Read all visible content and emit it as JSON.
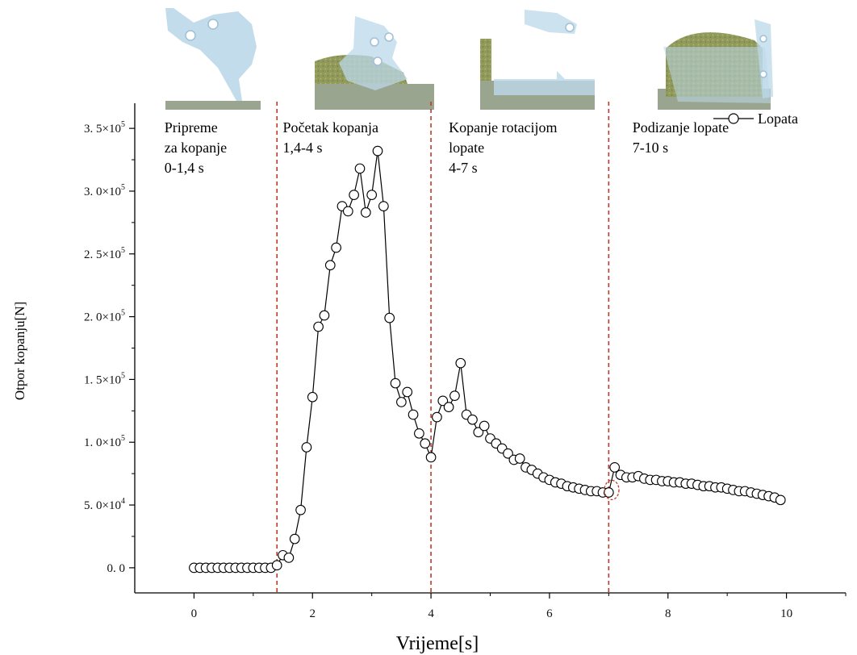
{
  "chart_data": {
    "type": "line",
    "xlabel": "Vrijeme[s]",
    "ylabel": "Otpor kopanju[N]",
    "xlim": [
      -1,
      11
    ],
    "ylim": [
      -20000,
      370000
    ],
    "x_ticks": [
      0,
      2,
      4,
      6,
      8,
      10
    ],
    "x_tick_labels": [
      "0",
      "2",
      "4",
      "6",
      "8",
      "10"
    ],
    "y_ticks": [
      0,
      50000,
      100000,
      150000,
      200000,
      250000,
      300000,
      350000
    ],
    "y_tick_labels": [
      {
        "mantissa": "0. 0",
        "exp": ""
      },
      {
        "mantissa": "5. 0×10",
        "exp": "4"
      },
      {
        "mantissa": "1. 0×10",
        "exp": "5"
      },
      {
        "mantissa": "1. 5×10",
        "exp": "5"
      },
      {
        "mantissa": "2. 0×10",
        "exp": "5"
      },
      {
        "mantissa": "2. 5×10",
        "exp": "5"
      },
      {
        "mantissa": "3. 0×10",
        "exp": "5"
      },
      {
        "mantissa": "3. 5×10",
        "exp": "5"
      }
    ],
    "legend": {
      "label": "Lopata",
      "position": "top-right"
    },
    "phase_boundaries": [
      1.4,
      4.0,
      7.0
    ],
    "phase_labels": [
      {
        "lines": [
          "Pripreme",
          "za kopanje",
          "0-1,4 s"
        ],
        "x": -0.5
      },
      {
        "lines": [
          "Početak kopanja",
          "1,4-4 s"
        ],
        "x": 1.5
      },
      {
        "lines": [
          "Kopanje rotacijom",
          "lopate",
          "4-7 s"
        ],
        "x": 4.3
      },
      {
        "lines": [
          "Podizanje lopate",
          "7-10 s"
        ],
        "x": 7.4
      }
    ],
    "series": [
      {
        "name": "Lopata",
        "color": "#000000",
        "marker": "open-circle",
        "points": [
          [
            0.0,
            0
          ],
          [
            0.1,
            0
          ],
          [
            0.2,
            0
          ],
          [
            0.3,
            0
          ],
          [
            0.4,
            0
          ],
          [
            0.5,
            0
          ],
          [
            0.6,
            0
          ],
          [
            0.7,
            0
          ],
          [
            0.8,
            0
          ],
          [
            0.9,
            0
          ],
          [
            1.0,
            0
          ],
          [
            1.1,
            0
          ],
          [
            1.2,
            0
          ],
          [
            1.3,
            0
          ],
          [
            1.4,
            2000
          ],
          [
            1.5,
            10000
          ],
          [
            1.6,
            8000
          ],
          [
            1.7,
            23000
          ],
          [
            1.8,
            46000
          ],
          [
            1.9,
            96000
          ],
          [
            2.0,
            136000
          ],
          [
            2.1,
            192000
          ],
          [
            2.2,
            201000
          ],
          [
            2.3,
            241000
          ],
          [
            2.4,
            255000
          ],
          [
            2.5,
            288000
          ],
          [
            2.6,
            284000
          ],
          [
            2.7,
            297000
          ],
          [
            2.8,
            318000
          ],
          [
            2.9,
            283000
          ],
          [
            3.0,
            297000
          ],
          [
            3.1,
            332000
          ],
          [
            3.2,
            288000
          ],
          [
            3.3,
            199000
          ],
          [
            3.4,
            147000
          ],
          [
            3.5,
            132000
          ],
          [
            3.6,
            140000
          ],
          [
            3.7,
            122000
          ],
          [
            3.8,
            107000
          ],
          [
            3.9,
            99000
          ],
          [
            4.0,
            88000
          ],
          [
            4.1,
            120000
          ],
          [
            4.2,
            133000
          ],
          [
            4.3,
            128000
          ],
          [
            4.4,
            137000
          ],
          [
            4.5,
            163000
          ],
          [
            4.6,
            122000
          ],
          [
            4.7,
            118000
          ],
          [
            4.8,
            108000
          ],
          [
            4.9,
            113000
          ],
          [
            5.0,
            103000
          ],
          [
            5.1,
            99000
          ],
          [
            5.2,
            95000
          ],
          [
            5.3,
            91000
          ],
          [
            5.4,
            86000
          ],
          [
            5.5,
            87000
          ],
          [
            5.6,
            80000
          ],
          [
            5.7,
            78000
          ],
          [
            5.8,
            75000
          ],
          [
            5.9,
            72000
          ],
          [
            6.0,
            70000
          ],
          [
            6.1,
            68000
          ],
          [
            6.2,
            67000
          ],
          [
            6.3,
            65000
          ],
          [
            6.4,
            64000
          ],
          [
            6.5,
            63000
          ],
          [
            6.6,
            62000
          ],
          [
            6.7,
            61000
          ],
          [
            6.8,
            61000
          ],
          [
            6.9,
            60000
          ],
          [
            7.0,
            60000
          ],
          [
            7.1,
            80000
          ],
          [
            7.2,
            74000
          ],
          [
            7.3,
            72000
          ],
          [
            7.4,
            72000
          ],
          [
            7.5,
            73000
          ],
          [
            7.6,
            71000
          ],
          [
            7.7,
            70000
          ],
          [
            7.8,
            70000
          ],
          [
            7.9,
            69000
          ],
          [
            8.0,
            69000
          ],
          [
            8.1,
            68000
          ],
          [
            8.2,
            68000
          ],
          [
            8.3,
            67000
          ],
          [
            8.4,
            67000
          ],
          [
            8.5,
            66000
          ],
          [
            8.6,
            65000
          ],
          [
            8.7,
            65000
          ],
          [
            8.8,
            64000
          ],
          [
            8.9,
            64000
          ],
          [
            9.0,
            63000
          ],
          [
            9.1,
            62000
          ],
          [
            9.2,
            61000
          ],
          [
            9.3,
            61000
          ],
          [
            9.4,
            60000
          ],
          [
            9.5,
            59000
          ],
          [
            9.6,
            58000
          ],
          [
            9.7,
            57000
          ],
          [
            9.8,
            56000
          ],
          [
            9.9,
            54000
          ]
        ]
      }
    ],
    "colors": {
      "phase_line": "#c0392b",
      "line": "#000000",
      "soil": "#8f9a5c",
      "soil_base": "#9aa58f",
      "bucket": "#bcd8ea"
    }
  }
}
